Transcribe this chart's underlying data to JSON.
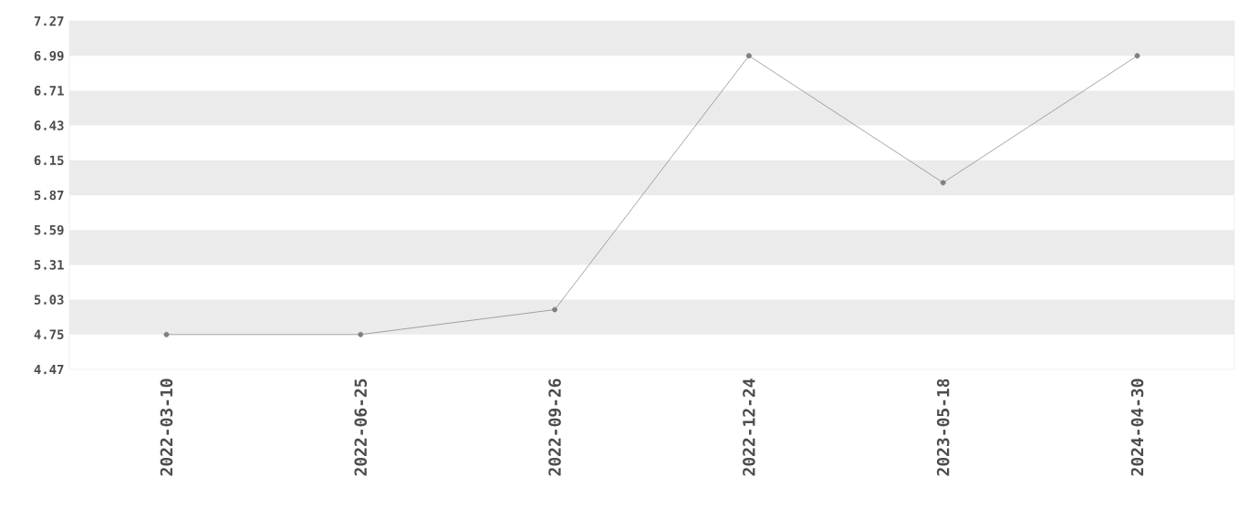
{
  "chart_data": {
    "type": "line",
    "categories": [
      "2022-03-10",
      "2022-06-25",
      "2022-09-26",
      "2022-12-24",
      "2023-05-18",
      "2024-04-30"
    ],
    "series": [
      {
        "color": "#7f7f7f",
        "values": [
          4.75,
          4.75,
          4.95,
          6.99,
          5.97,
          6.99
        ]
      }
    ],
    "ylim": [
      4.47,
      7.27
    ],
    "yticks": [
      4.47,
      4.75,
      5.03,
      5.31,
      5.59,
      5.87,
      6.15,
      6.43,
      6.71,
      6.99,
      7.27
    ],
    "bands": [
      {
        "axis": "y",
        "from": 4.75,
        "to": 5.03,
        "color": "#ebebeb"
      },
      {
        "axis": "y",
        "from": 5.31,
        "to": 5.59,
        "color": "#ebebeb"
      },
      {
        "axis": "y",
        "from": 5.87,
        "to": 6.15,
        "color": "#ebebeb"
      },
      {
        "axis": "y",
        "from": 6.43,
        "to": 6.71,
        "color": "#ebebeb"
      },
      {
        "axis": "y",
        "from": 6.99,
        "to": 7.27,
        "color": "#ebebeb"
      }
    ],
    "marker": "circle",
    "line_style": "solid"
  }
}
